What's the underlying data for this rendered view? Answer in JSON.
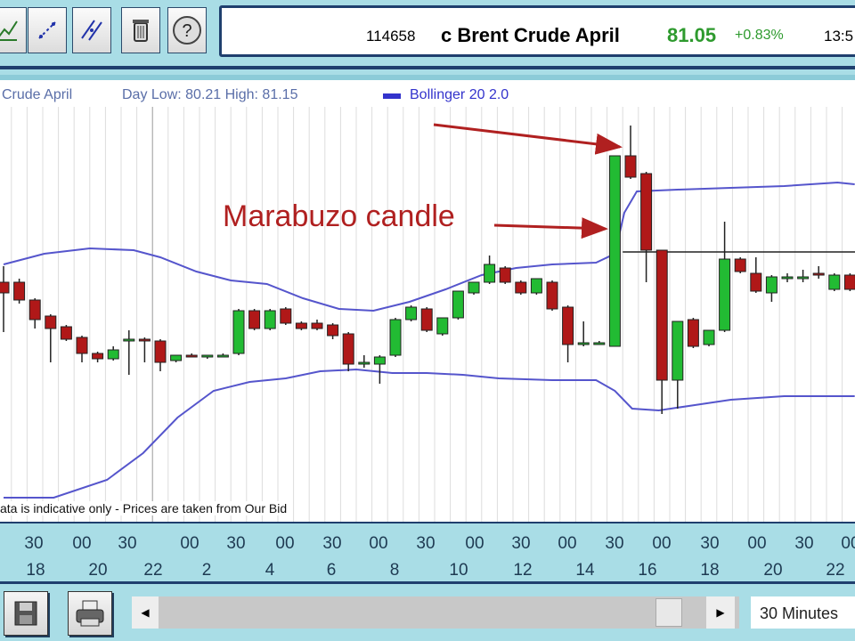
{
  "toolbar": {
    "icons": [
      "chart-check-icon",
      "line-tool-icon",
      "parallel-line-icon",
      "trash-icon",
      "help-icon"
    ]
  },
  "quote": {
    "id": "114658",
    "name": "c Brent Crude April",
    "price": "81.05",
    "change": "+0.83%",
    "time": "13:5",
    "price_color": "#2e9a2e"
  },
  "legend": {
    "instrument": "Crude April",
    "day_range": "Day Low: 80.21 High: 81.15",
    "indicator": "Bollinger 20 2.0",
    "indicator_color": "#3333cc"
  },
  "disclaimer": "ata is indicative only - Prices are taken from Our Bid",
  "annotation": {
    "text": "Marabuzo candle",
    "color": "#b02020"
  },
  "time_axis": {
    "minutes": [
      "30",
      "00",
      "30",
      "00",
      "30",
      "00",
      "30",
      "00",
      "30",
      "00",
      "30",
      "00",
      "30",
      "00",
      "30",
      "00",
      "30",
      "00"
    ],
    "hours": [
      "18",
      "20",
      "22",
      "2",
      "4",
      "6",
      "8",
      "10",
      "12",
      "14",
      "16",
      "18",
      "20",
      "22"
    ]
  },
  "bottom": {
    "interval": "30 Minutes"
  },
  "chart_data": {
    "type": "candlestick",
    "colors": {
      "up": "#22bb33",
      "down": "#b01818",
      "band": "#5555cc"
    },
    "grid": true,
    "candles": [
      [
        80.88,
        80.97,
        80.6,
        80.82
      ],
      [
        80.88,
        80.9,
        80.76,
        80.78
      ],
      [
        80.78,
        80.79,
        80.62,
        80.67
      ],
      [
        80.69,
        80.7,
        80.43,
        80.62
      ],
      [
        80.63,
        80.64,
        80.55,
        80.56
      ],
      [
        80.57,
        80.58,
        80.43,
        80.48
      ],
      [
        80.48,
        80.49,
        80.43,
        80.45
      ],
      [
        80.45,
        80.52,
        80.44,
        80.5
      ],
      [
        80.55,
        80.61,
        80.36,
        80.56
      ],
      [
        80.56,
        80.57,
        80.43,
        80.55
      ],
      [
        80.55,
        80.56,
        80.38,
        80.43
      ],
      [
        80.44,
        80.47,
        80.43,
        80.47
      ],
      [
        80.47,
        80.48,
        80.46,
        80.46
      ],
      [
        80.46,
        80.47,
        80.45,
        80.47
      ],
      [
        80.47,
        80.48,
        80.46,
        80.47
      ],
      [
        80.48,
        80.73,
        80.47,
        80.72
      ],
      [
        80.72,
        80.73,
        80.61,
        80.62
      ],
      [
        80.62,
        80.73,
        80.61,
        80.72
      ],
      [
        80.73,
        80.74,
        80.64,
        80.65
      ],
      [
        80.65,
        80.66,
        80.61,
        80.62
      ],
      [
        80.65,
        80.67,
        80.61,
        80.62
      ],
      [
        80.64,
        80.65,
        80.56,
        80.58
      ],
      [
        80.59,
        80.6,
        80.38,
        80.42
      ],
      [
        80.43,
        80.47,
        80.4,
        80.43
      ],
      [
        80.42,
        80.47,
        80.31,
        80.46
      ],
      [
        80.47,
        80.68,
        80.46,
        80.67
      ],
      [
        80.67,
        80.75,
        80.66,
        80.74
      ],
      [
        80.73,
        80.74,
        80.6,
        80.61
      ],
      [
        80.59,
        80.68,
        80.58,
        80.68
      ],
      [
        80.68,
        80.83,
        80.67,
        80.83
      ],
      [
        80.82,
        80.88,
        80.81,
        80.88
      ],
      [
        80.88,
        81.03,
        80.87,
        80.98
      ],
      [
        80.96,
        80.97,
        80.87,
        80.88
      ],
      [
        80.88,
        80.89,
        80.81,
        80.82
      ],
      [
        80.82,
        80.9,
        80.81,
        80.9
      ],
      [
        80.88,
        80.89,
        80.72,
        80.73
      ],
      [
        80.74,
        80.75,
        80.43,
        80.53
      ],
      [
        80.53,
        80.66,
        80.52,
        80.54
      ],
      [
        80.54,
        80.55,
        80.53,
        80.54
      ],
      [
        80.52,
        81.59,
        80.52,
        81.59
      ],
      [
        81.59,
        81.76,
        81.46,
        81.47
      ],
      [
        81.49,
        81.5,
        80.88,
        81.06
      ],
      [
        81.06,
        81.06,
        80.14,
        80.33
      ],
      [
        80.33,
        80.66,
        80.17,
        80.66
      ],
      [
        80.67,
        80.68,
        80.51,
        80.52
      ],
      [
        80.53,
        80.61,
        80.52,
        80.61
      ],
      [
        80.61,
        81.22,
        80.6,
        81.01
      ],
      [
        81.01,
        81.02,
        80.93,
        80.94
      ],
      [
        80.93,
        81.02,
        80.82,
        80.83
      ],
      [
        80.82,
        80.92,
        80.77,
        80.91
      ],
      [
        80.9,
        80.93,
        80.88,
        80.91
      ],
      [
        80.91,
        80.95,
        80.88,
        80.91
      ],
      [
        80.93,
        80.97,
        80.9,
        80.92
      ],
      [
        80.84,
        80.93,
        80.83,
        80.92
      ],
      [
        80.92,
        80.93,
        80.83,
        80.84
      ]
    ],
    "bollinger_upper": [
      [
        0,
        80.98
      ],
      [
        2.6,
        81.04
      ],
      [
        5.5,
        81.07
      ],
      [
        8.3,
        81.06
      ],
      [
        10,
        81.02
      ],
      [
        12.3,
        80.94
      ],
      [
        14.5,
        80.89
      ],
      [
        16.8,
        80.87
      ],
      [
        19.1,
        80.79
      ],
      [
        21.4,
        80.73
      ],
      [
        23.6,
        80.72
      ],
      [
        25.9,
        80.77
      ],
      [
        28.2,
        80.84
      ],
      [
        30.5,
        80.92
      ],
      [
        32.7,
        80.96
      ],
      [
        35,
        80.98
      ],
      [
        37.8,
        80.99
      ],
      [
        39,
        81.04
      ],
      [
        39.6,
        81.27
      ],
      [
        40.4,
        81.39
      ],
      [
        43,
        81.4
      ],
      [
        46.4,
        81.41
      ],
      [
        49.8,
        81.42
      ],
      [
        53.2,
        81.44
      ],
      [
        54.3,
        81.43
      ]
    ],
    "bollinger_lower": [
      [
        0,
        79.67
      ],
      [
        3.2,
        79.67
      ],
      [
        6.6,
        79.77
      ],
      [
        8.9,
        79.92
      ],
      [
        11.1,
        80.12
      ],
      [
        13.4,
        80.27
      ],
      [
        15.7,
        80.32
      ],
      [
        18,
        80.34
      ],
      [
        20.2,
        80.38
      ],
      [
        22.5,
        80.39
      ],
      [
        24.8,
        80.37
      ],
      [
        27,
        80.37
      ],
      [
        29.3,
        80.36
      ],
      [
        31.6,
        80.34
      ],
      [
        35,
        80.33
      ],
      [
        37.8,
        80.33
      ],
      [
        39,
        80.27
      ],
      [
        40.1,
        80.17
      ],
      [
        41.8,
        80.16
      ],
      [
        44.1,
        80.19
      ],
      [
        46.4,
        80.22
      ],
      [
        49.8,
        80.24
      ],
      [
        54.3,
        80.24
      ]
    ],
    "price_line": 81.05
  }
}
